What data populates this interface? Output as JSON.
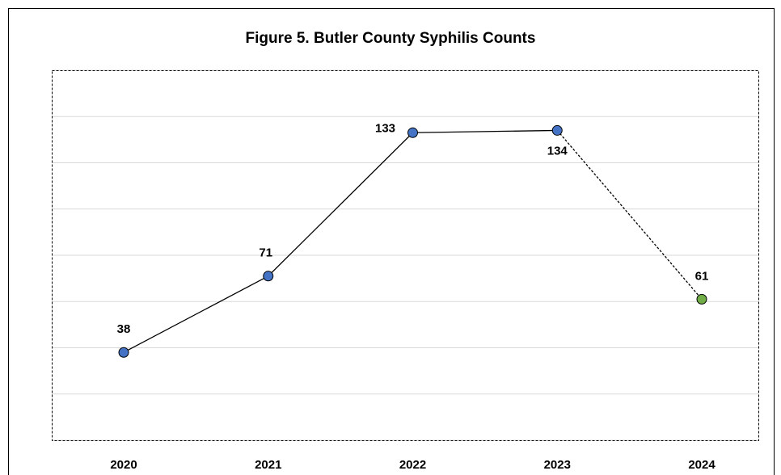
{
  "chart_data": {
    "type": "line",
    "title": "Figure 5. Butler County Syphilis Counts",
    "categories": [
      "2020",
      "2021",
      "2022",
      "2023",
      "2024"
    ],
    "values": [
      38,
      71,
      133,
      134,
      61
    ],
    "color": "#000000",
    "marker_colors": [
      "#4472c4",
      "#4472c4",
      "#4472c4",
      "#4472c4",
      "#70ad47"
    ],
    "segment_styles": [
      null,
      "solid",
      "solid",
      "solid",
      "dashed"
    ],
    "ylim": [
      0,
      160
    ],
    "yticks": [
      0,
      20,
      40,
      60,
      80,
      100,
      120,
      140,
      160
    ],
    "grid": true
  }
}
